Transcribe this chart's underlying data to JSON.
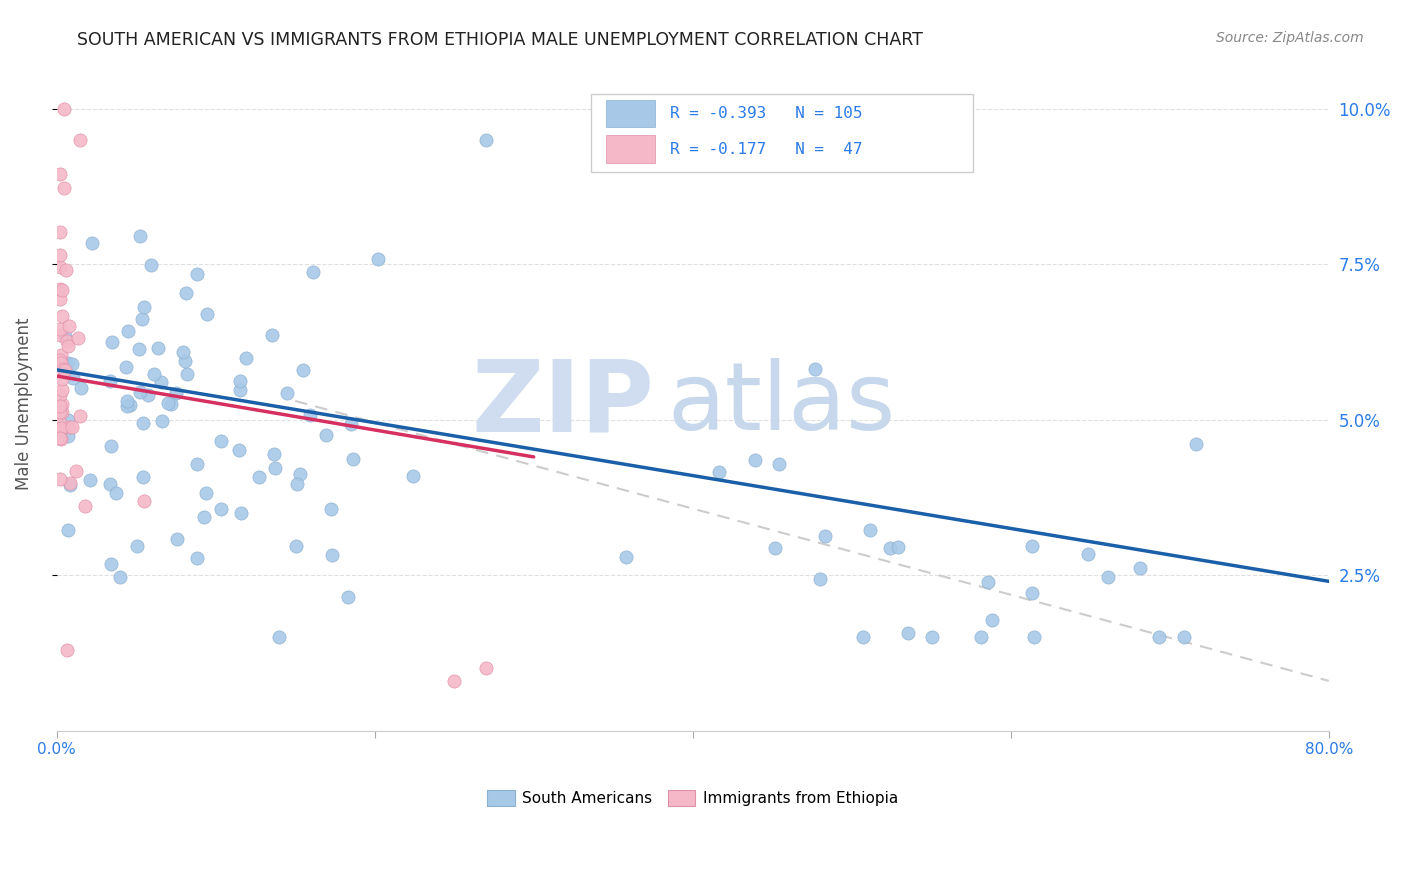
{
  "title": "SOUTH AMERICAN VS IMMIGRANTS FROM ETHIOPIA MALE UNEMPLOYMENT CORRELATION CHART",
  "source": "Source: ZipAtlas.com",
  "ylabel": "Male Unemployment",
  "xlim": [
    0.0,
    0.8
  ],
  "ylim": [
    0.0,
    0.105
  ],
  "ytick_vals": [
    0.025,
    0.05,
    0.075,
    0.1
  ],
  "ytick_labels": [
    "2.5%",
    "5.0%",
    "7.5%",
    "10.0%"
  ],
  "xtick_vals": [
    0.0,
    0.2,
    0.4,
    0.6,
    0.8
  ],
  "xtick_labels": [
    "0.0%",
    "",
    "",
    "",
    "80.0%"
  ],
  "blue_color": "#a8c8e8",
  "pink_color": "#f4b8c8",
  "blue_line_color": "#1a5fa8",
  "pink_line_color": "#d63060",
  "dashed_line_color": "#cccccc",
  "legend_R1": "-0.393",
  "legend_N1": "105",
  "legend_R2": "-0.177",
  "legend_N2": " 47",
  "blue_line_x": [
    0.0,
    0.8
  ],
  "blue_line_y": [
    0.058,
    0.024
  ],
  "pink_line_x": [
    0.0,
    0.3
  ],
  "pink_line_y": [
    0.057,
    0.044
  ],
  "dashed_line_x": [
    0.15,
    0.8
  ],
  "dashed_line_y": [
    0.053,
    0.008
  ],
  "watermark_zip": "ZIP",
  "watermark_atlas": "atlas",
  "watermark_color_zip": "#d0ddf0",
  "watermark_color_atlas": "#c8d8ec",
  "background_color": "#ffffff",
  "grid_color": "#e0e0e0",
  "title_color": "#222222",
  "axis_label_color": "#555555",
  "right_tick_color": "#2b7ce9",
  "tick_label_color": "#2b7ce9",
  "legend_label1": "South Americans",
  "legend_label2": "Immigrants from Ethiopia"
}
